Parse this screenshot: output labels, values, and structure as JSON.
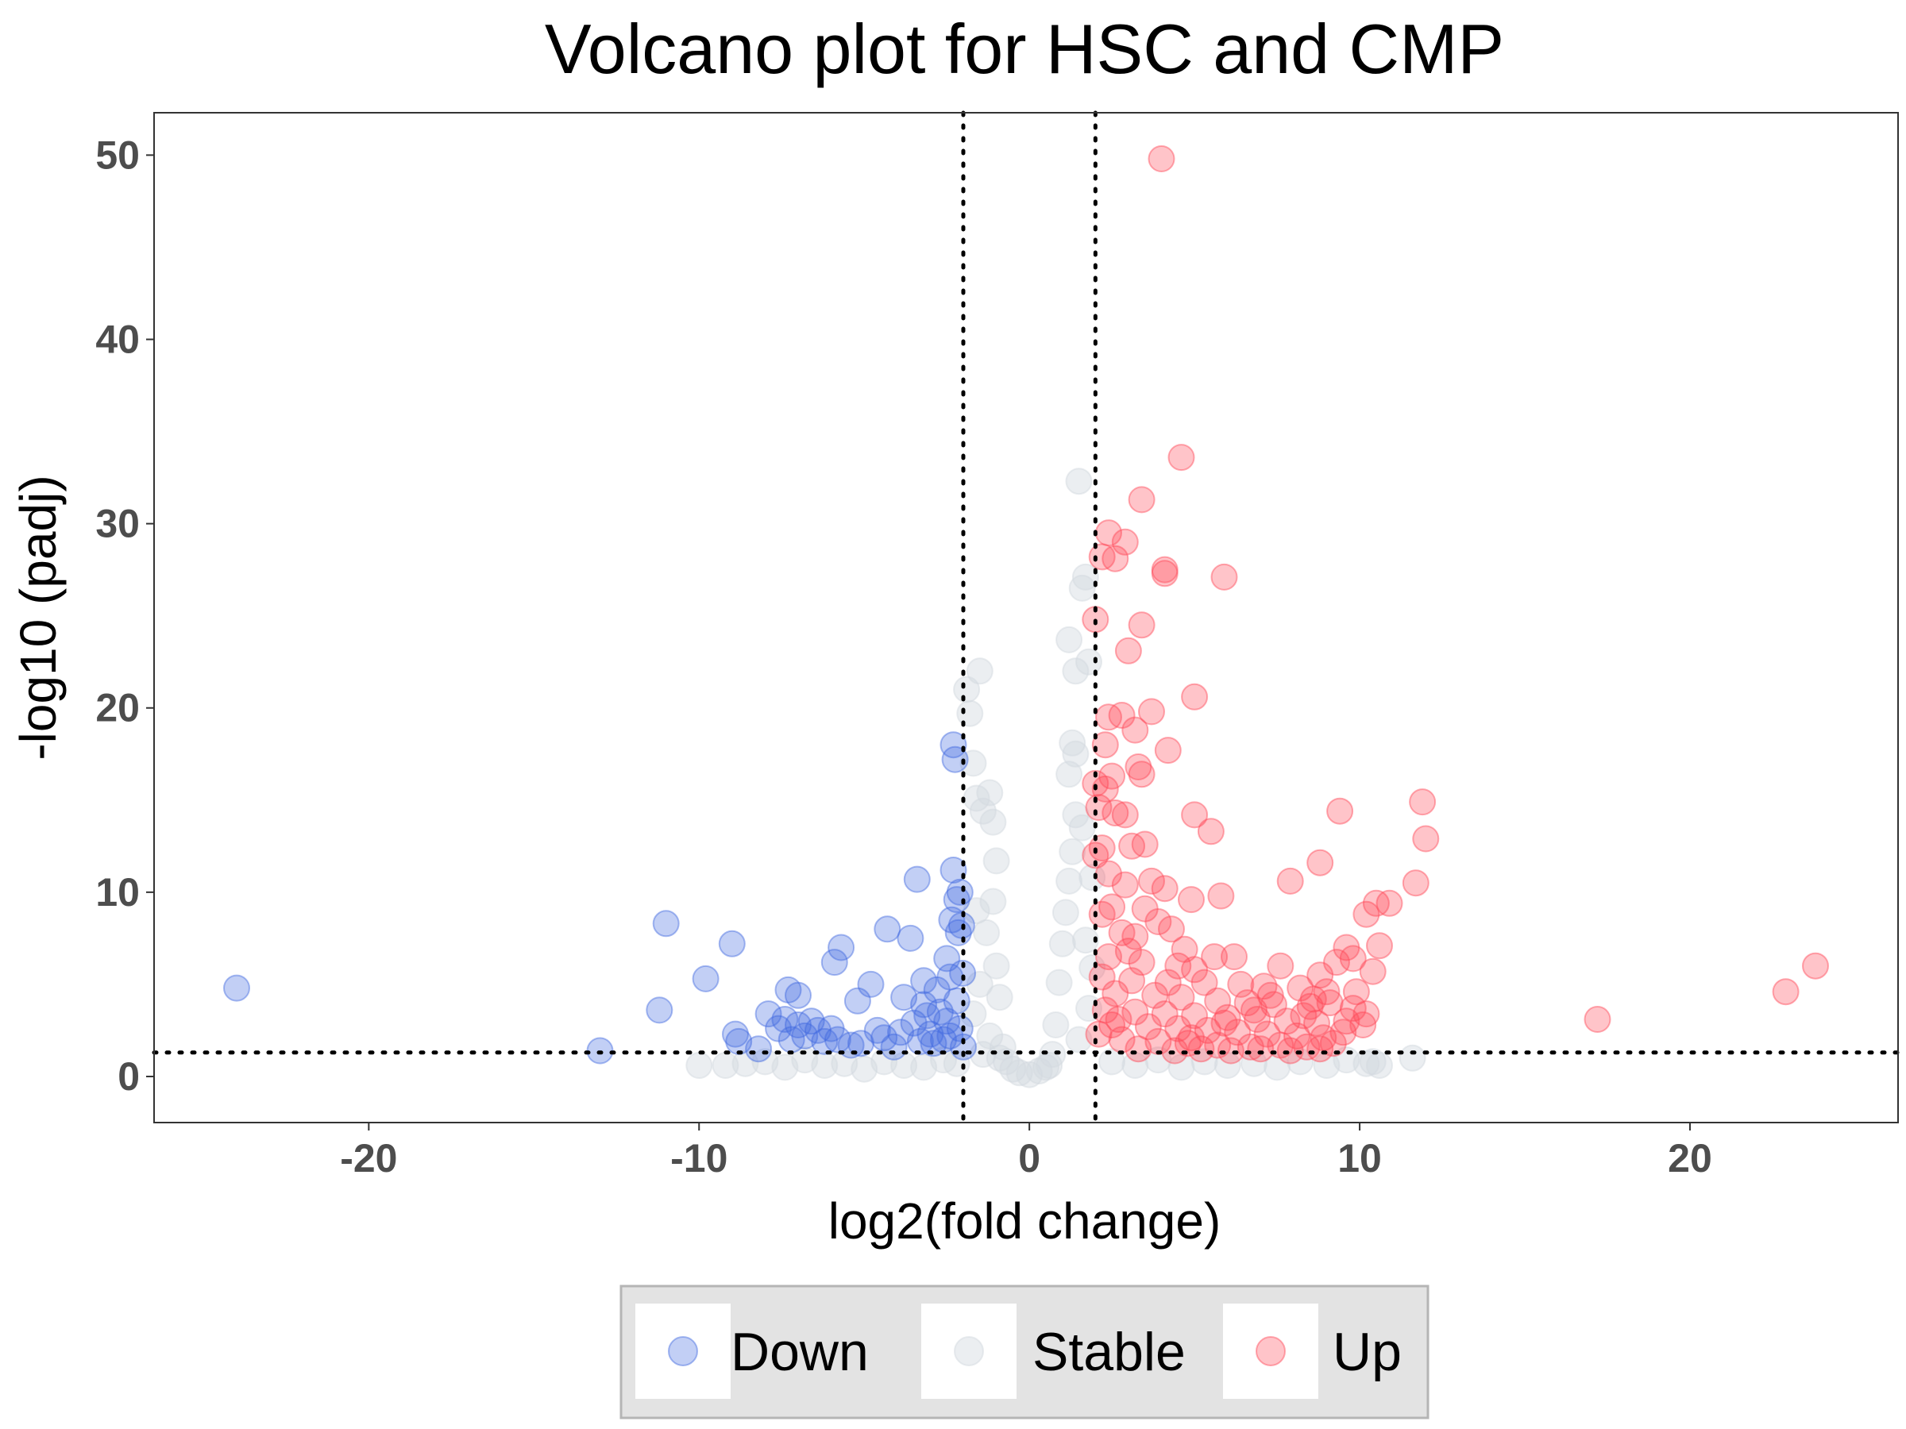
{
  "chart_data": {
    "type": "scatter",
    "title": "Volcano plot for HSC and CMP",
    "xlabel": "log2(fold change)",
    "ylabel": "-log10 (padj)",
    "xlim": [
      -26.5,
      26.3
    ],
    "ylim": [
      -2.5,
      52.3
    ],
    "x_ticks": [
      -20,
      -10,
      0,
      10,
      20
    ],
    "y_ticks": [
      0,
      10,
      20,
      30,
      40,
      50
    ],
    "x_tick_labels": [
      "-20",
      "-10",
      "0",
      "10",
      "20"
    ],
    "y_tick_labels": [
      "0",
      "10",
      "20",
      "30",
      "40",
      "50"
    ],
    "grid": false,
    "legend_position": "bottom",
    "thresholds": {
      "log2fc": [
        -2,
        2
      ],
      "neg_log10_padj": 1.3
    },
    "colors": {
      "Down": "#4169e1",
      "Stable": "#d3d9e0",
      "Up": "#ff4757",
      "threshold_line": "#000000"
    },
    "series": [
      {
        "name": "Down",
        "points": [
          [
            -24,
            4.8
          ],
          [
            -13,
            1.4
          ],
          [
            -11.2,
            3.6
          ],
          [
            -11,
            8.3
          ],
          [
            -9.8,
            5.3
          ],
          [
            -9,
            7.2
          ],
          [
            -8.9,
            2.3
          ],
          [
            -8.8,
            1.9
          ],
          [
            -8.2,
            1.5
          ],
          [
            -7.9,
            3.4
          ],
          [
            -7.6,
            2.6
          ],
          [
            -7.4,
            3.1
          ],
          [
            -7.3,
            4.7
          ],
          [
            -7.2,
            2.0
          ],
          [
            -7.0,
            4.4
          ],
          [
            -7.0,
            2.8
          ],
          [
            -6.8,
            2.2
          ],
          [
            -6.6,
            3.0
          ],
          [
            -6.4,
            2.5
          ],
          [
            -6.2,
            1.9
          ],
          [
            -6.0,
            2.6
          ],
          [
            -5.9,
            6.2
          ],
          [
            -5.8,
            2.0
          ],
          [
            -5.7,
            7.0
          ],
          [
            -5.4,
            1.7
          ],
          [
            -5.2,
            4.1
          ],
          [
            -5.1,
            1.8
          ],
          [
            -4.8,
            5.0
          ],
          [
            -4.6,
            2.5
          ],
          [
            -4.4,
            2.1
          ],
          [
            -4.3,
            8.0
          ],
          [
            -4.1,
            1.6
          ],
          [
            -3.9,
            2.4
          ],
          [
            -3.8,
            4.3
          ],
          [
            -3.6,
            7.5
          ],
          [
            -3.5,
            2.9
          ],
          [
            -3.4,
            10.7
          ],
          [
            -3.3,
            1.9
          ],
          [
            -3.2,
            3.9
          ],
          [
            -3.2,
            5.2
          ],
          [
            -3.1,
            3.3
          ],
          [
            -3.0,
            2.3
          ],
          [
            -2.9,
            1.8
          ],
          [
            -2.8,
            4.7
          ],
          [
            -2.7,
            3.5
          ],
          [
            -2.6,
            2.0
          ],
          [
            -2.5,
            6.4
          ],
          [
            -2.5,
            3.0
          ],
          [
            -2.4,
            5.4
          ],
          [
            -2.4,
            2.2
          ],
          [
            -2.35,
            8.5
          ],
          [
            -2.3,
            11.2
          ],
          [
            -2.3,
            18.0
          ],
          [
            -2.25,
            17.2
          ],
          [
            -2.2,
            9.6
          ],
          [
            -2.2,
            4.1
          ],
          [
            -2.15,
            7.8
          ],
          [
            -2.1,
            10.0
          ],
          [
            -2.1,
            2.6
          ],
          [
            -2.05,
            8.2
          ],
          [
            -2.02,
            5.6
          ],
          [
            -2.0,
            1.6
          ]
        ]
      },
      {
        "name": "Stable",
        "points": [
          [
            -10,
            0.6
          ],
          [
            -9.2,
            0.6
          ],
          [
            -8.6,
            0.7
          ],
          [
            -8,
            0.8
          ],
          [
            -7.4,
            0.5
          ],
          [
            -6.8,
            0.9
          ],
          [
            -6.2,
            0.6
          ],
          [
            -5.6,
            0.7
          ],
          [
            -5,
            0.4
          ],
          [
            -4.4,
            0.8
          ],
          [
            -3.8,
            0.6
          ],
          [
            -3.2,
            0.5
          ],
          [
            -2.6,
            0.9
          ],
          [
            -2.2,
            0.7
          ],
          [
            -1.9,
            21.0
          ],
          [
            -1.8,
            19.7
          ],
          [
            -1.7,
            17.0
          ],
          [
            -1.6,
            15.1
          ],
          [
            -1.5,
            22.0
          ],
          [
            -1.4,
            14.4
          ],
          [
            -1.2,
            15.4
          ],
          [
            -1.1,
            13.8
          ],
          [
            -1.0,
            11.7
          ],
          [
            -1.1,
            9.5
          ],
          [
            -1.6,
            9.0
          ],
          [
            -1.3,
            7.8
          ],
          [
            -1.0,
            6.0
          ],
          [
            -1.5,
            5.0
          ],
          [
            -0.9,
            4.3
          ],
          [
            -1.7,
            3.4
          ],
          [
            -1.2,
            2.2
          ],
          [
            -0.8,
            1.6
          ],
          [
            -0.7,
            0.8
          ],
          [
            -0.5,
            0.4
          ],
          [
            -0.3,
            0.2
          ],
          [
            0,
            0.1
          ],
          [
            0.3,
            0.3
          ],
          [
            0.5,
            0.5
          ],
          [
            0.7,
            1.2
          ],
          [
            0.8,
            2.8
          ],
          [
            0.9,
            5.1
          ],
          [
            1.0,
            7.2
          ],
          [
            1.1,
            8.9
          ],
          [
            1.2,
            10.6
          ],
          [
            1.3,
            12.2
          ],
          [
            1.4,
            14.2
          ],
          [
            1.2,
            16.4
          ],
          [
            1.3,
            18.1
          ],
          [
            1.4,
            17.5
          ],
          [
            1.4,
            22.0
          ],
          [
            1.2,
            23.7
          ],
          [
            1.6,
            26.5
          ],
          [
            1.7,
            27.1
          ],
          [
            1.5,
            32.3
          ],
          [
            1.8,
            22.5
          ],
          [
            1.6,
            13.5
          ],
          [
            1.9,
            10.8
          ],
          [
            1.7,
            7.4
          ],
          [
            1.9,
            5.9
          ],
          [
            1.8,
            3.7
          ],
          [
            1.5,
            2.0
          ],
          [
            2.5,
            0.8
          ],
          [
            3.2,
            0.6
          ],
          [
            3.9,
            0.9
          ],
          [
            4.6,
            0.5
          ],
          [
            5.3,
            0.8
          ],
          [
            6,
            0.6
          ],
          [
            6.8,
            0.7
          ],
          [
            7.5,
            0.5
          ],
          [
            8.2,
            0.8
          ],
          [
            9,
            0.6
          ],
          [
            9.6,
            0.9
          ],
          [
            10.2,
            0.7
          ],
          [
            10.4,
            0.8
          ],
          [
            10.6,
            0.6
          ],
          [
            11.6,
            1.0
          ],
          [
            -0.9,
            1.0
          ],
          [
            -1.4,
            1.2
          ],
          [
            0.6,
            0.6
          ]
        ]
      },
      {
        "name": "Up",
        "points": [
          [
            4.0,
            49.8
          ],
          [
            4.6,
            33.6
          ],
          [
            3.4,
            31.3
          ],
          [
            2.4,
            29.5
          ],
          [
            2.9,
            29.0
          ],
          [
            2.6,
            28.1
          ],
          [
            2.2,
            28.2
          ],
          [
            4.1,
            27.3
          ],
          [
            4.1,
            27.5
          ],
          [
            5.9,
            27.1
          ],
          [
            2.0,
            24.8
          ],
          [
            3.4,
            24.5
          ],
          [
            3.0,
            23.1
          ],
          [
            5.0,
            20.6
          ],
          [
            2.4,
            19.5
          ],
          [
            3.7,
            19.8
          ],
          [
            2.8,
            19.6
          ],
          [
            3.2,
            18.8
          ],
          [
            4.2,
            17.7
          ],
          [
            2.3,
            18.0
          ],
          [
            3.3,
            16.8
          ],
          [
            3.4,
            16.4
          ],
          [
            2.5,
            16.3
          ],
          [
            2.0,
            15.9
          ],
          [
            2.3,
            15.6
          ],
          [
            2.1,
            14.6
          ],
          [
            2.6,
            14.3
          ],
          [
            2.9,
            14.2
          ],
          [
            5.0,
            14.2
          ],
          [
            5.5,
            13.3
          ],
          [
            9.4,
            14.4
          ],
          [
            11.9,
            14.9
          ],
          [
            12.0,
            12.9
          ],
          [
            2.2,
            12.4
          ],
          [
            3.1,
            12.5
          ],
          [
            3.5,
            12.6
          ],
          [
            2.0,
            12.0
          ],
          [
            2.4,
            11.0
          ],
          [
            8.8,
            11.6
          ],
          [
            7.9,
            10.6
          ],
          [
            11.7,
            10.5
          ],
          [
            3.7,
            10.6
          ],
          [
            4.1,
            10.2
          ],
          [
            2.9,
            10.4
          ],
          [
            5.8,
            9.8
          ],
          [
            4.9,
            9.6
          ],
          [
            10.2,
            8.8
          ],
          [
            10.5,
            9.4
          ],
          [
            10.9,
            9.4
          ],
          [
            2.5,
            9.2
          ],
          [
            3.5,
            9.1
          ],
          [
            2.2,
            8.8
          ],
          [
            3.9,
            8.4
          ],
          [
            4.3,
            8.0
          ],
          [
            2.8,
            7.8
          ],
          [
            3.2,
            7.6
          ],
          [
            10.6,
            7.1
          ],
          [
            9.6,
            7.0
          ],
          [
            4.7,
            6.9
          ],
          [
            5.6,
            6.5
          ],
          [
            6.2,
            6.5
          ],
          [
            9.8,
            6.4
          ],
          [
            2.4,
            6.5
          ],
          [
            3.4,
            6.2
          ],
          [
            9.3,
            6.2
          ],
          [
            7.6,
            6.0
          ],
          [
            4.5,
            6.0
          ],
          [
            5.0,
            5.8
          ],
          [
            10.4,
            5.7
          ],
          [
            8.8,
            5.5
          ],
          [
            2.2,
            5.4
          ],
          [
            3.1,
            5.2
          ],
          [
            5.3,
            5.1
          ],
          [
            6.4,
            5.0
          ],
          [
            7.1,
            4.9
          ],
          [
            8.2,
            4.8
          ],
          [
            9.0,
            4.6
          ],
          [
            2.6,
            4.5
          ],
          [
            3.8,
            4.4
          ],
          [
            4.6,
            4.3
          ],
          [
            5.7,
            4.1
          ],
          [
            6.6,
            4.0
          ],
          [
            7.4,
            3.9
          ],
          [
            8.5,
            3.8
          ],
          [
            9.8,
            3.7
          ],
          [
            2.3,
            3.6
          ],
          [
            3.2,
            3.5
          ],
          [
            4.1,
            3.4
          ],
          [
            5.0,
            3.3
          ],
          [
            6.0,
            3.2
          ],
          [
            6.9,
            3.1
          ],
          [
            7.8,
            3.0
          ],
          [
            8.7,
            2.9
          ],
          [
            10.2,
            3.4
          ],
          [
            2.5,
            2.8
          ],
          [
            3.6,
            2.7
          ],
          [
            4.5,
            2.6
          ],
          [
            5.4,
            2.5
          ],
          [
            6.3,
            2.4
          ],
          [
            7.2,
            2.3
          ],
          [
            8.1,
            2.2
          ],
          [
            8.9,
            2.1
          ],
          [
            9.5,
            2.4
          ],
          [
            2.8,
            2.0
          ],
          [
            3.9,
            1.9
          ],
          [
            4.8,
            1.8
          ],
          [
            5.7,
            1.7
          ],
          [
            6.7,
            1.6
          ],
          [
            7.6,
            1.7
          ],
          [
            8.4,
            1.6
          ],
          [
            9.2,
            1.8
          ],
          [
            3.3,
            1.5
          ],
          [
            4.4,
            1.4
          ],
          [
            5.2,
            1.5
          ],
          [
            6.1,
            1.4
          ],
          [
            7.0,
            1.5
          ],
          [
            7.9,
            1.4
          ],
          [
            8.8,
            1.5
          ],
          [
            2.1,
            2.3
          ],
          [
            9.9,
            4.6
          ],
          [
            10.1,
            2.8
          ],
          [
            9.6,
            3.0
          ],
          [
            8.6,
            4.2
          ],
          [
            7.3,
            4.4
          ],
          [
            6.8,
            3.6
          ],
          [
            5.9,
            2.9
          ],
          [
            4.9,
            2.1
          ],
          [
            4.2,
            5.1
          ],
          [
            3.0,
            6.8
          ],
          [
            2.7,
            3.1
          ],
          [
            8.3,
            3.3
          ],
          [
            9.1,
            4.0
          ],
          [
            17.2,
            3.1
          ],
          [
            22.9,
            4.6
          ],
          [
            23.8,
            6.0
          ]
        ]
      }
    ]
  },
  "legend": {
    "items": [
      {
        "label": "Down",
        "color": "#4169e1"
      },
      {
        "label": "Stable",
        "color": "#d3d9e0"
      },
      {
        "label": "Up",
        "color": "#ff4757"
      }
    ]
  }
}
